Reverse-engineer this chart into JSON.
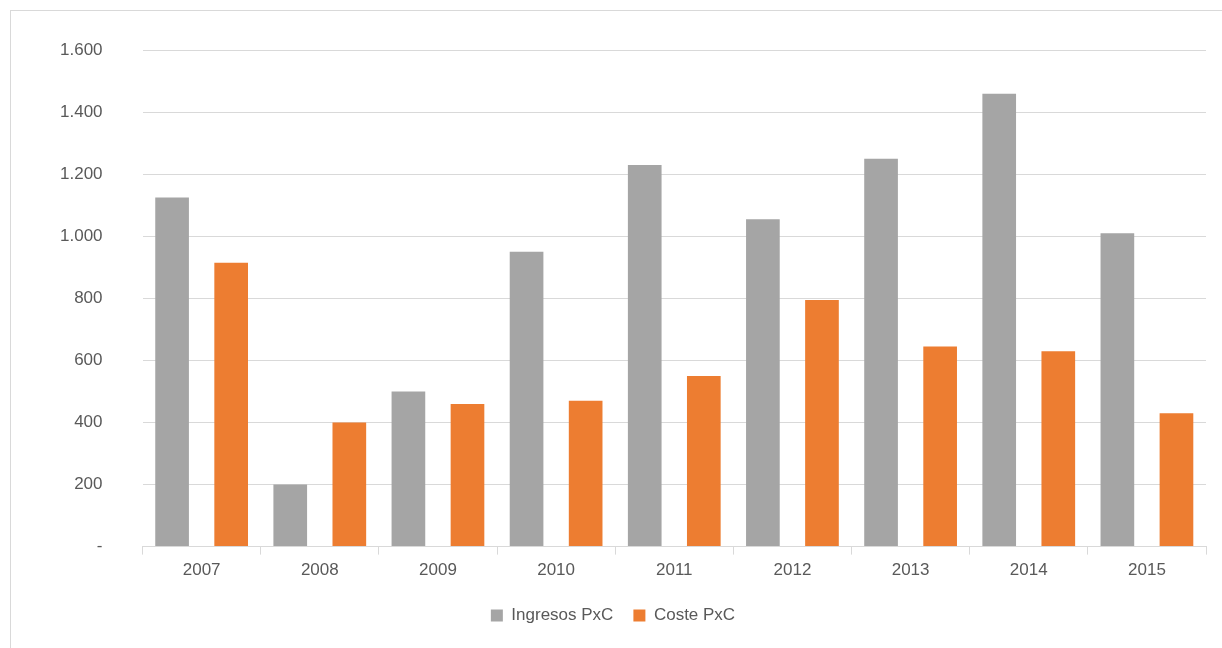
{
  "chart_data": {
    "type": "bar",
    "categories": [
      "2007",
      "2008",
      "2009",
      "2010",
      "2011",
      "2012",
      "2013",
      "2014",
      "2015"
    ],
    "series": [
      {
        "name": "Ingresos PxC",
        "color": "#a5a5a5",
        "values": [
          1125,
          200,
          500,
          950,
          1230,
          1055,
          1250,
          1460,
          1010
        ]
      },
      {
        "name": "Coste PxC",
        "color": "#ed7d31",
        "values": [
          915,
          400,
          460,
          470,
          550,
          795,
          645,
          630,
          430
        ]
      }
    ],
    "ylim": [
      0,
      1600
    ],
    "yticks": [
      {
        "value": 0,
        "label": "-"
      },
      {
        "value": 200,
        "label": "200"
      },
      {
        "value": 400,
        "label": "400"
      },
      {
        "value": 600,
        "label": "600"
      },
      {
        "value": 800,
        "label": "800"
      },
      {
        "value": 1000,
        "label": "1.000"
      },
      {
        "value": 1200,
        "label": "1.200"
      },
      {
        "value": 1400,
        "label": "1.400"
      },
      {
        "value": 1600,
        "label": "1.600"
      }
    ],
    "grid": "y",
    "legend": "bottom"
  }
}
